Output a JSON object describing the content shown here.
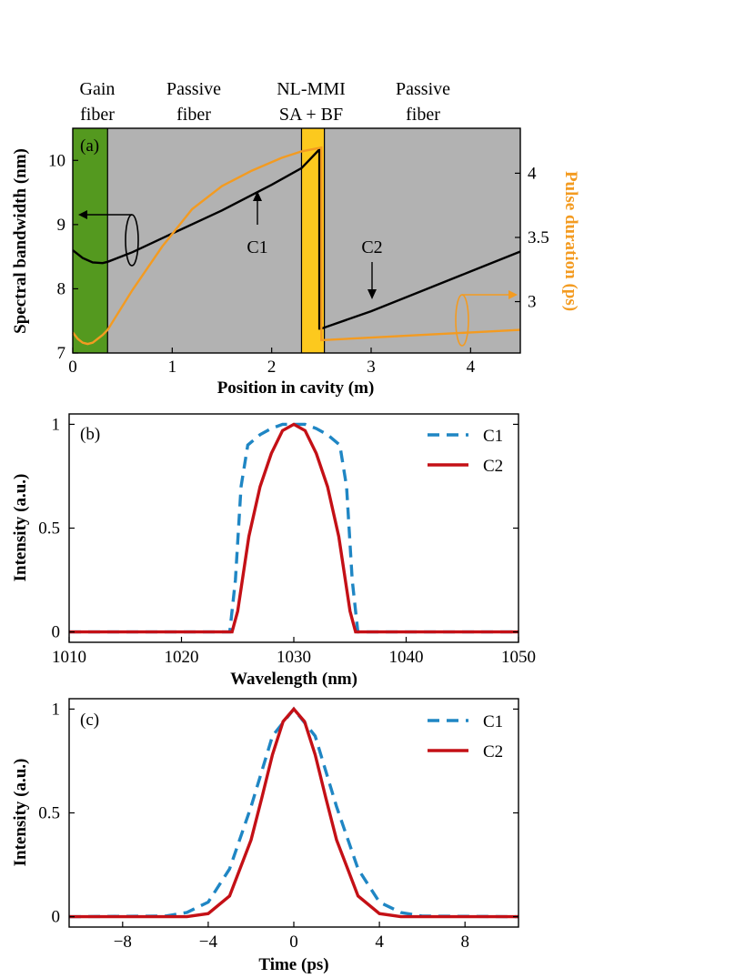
{
  "colors": {
    "gain_fiber": "#54991f",
    "passive_fiber": "#b2b2b2",
    "mmi": "#fcc91e",
    "bandwidth_curve": "#000000",
    "pulse_duration_curve": "#f39b21",
    "c1": "#1f86c4",
    "c2": "#c41016"
  },
  "chart_data": [
    {
      "panel": "(a)",
      "type": "line",
      "section_labels": [
        {
          "line1": "Gain",
          "line2": "fiber"
        },
        {
          "line1": "Passive",
          "line2": "fiber"
        },
        {
          "line1": "NL-MMI",
          "line2": "SA + BF"
        },
        {
          "line1": "Passive",
          "line2": "fiber"
        }
      ],
      "regions": [
        {
          "name": "Gain fiber",
          "x": [
            0,
            0.35
          ]
        },
        {
          "name": "Passive fiber",
          "x": [
            0.35,
            2.3
          ]
        },
        {
          "name": "NL-MMI SA + BF",
          "x": [
            2.3,
            2.53
          ]
        },
        {
          "name": "Passive fiber",
          "x": [
            2.53,
            4.5
          ]
        }
      ],
      "xlabel": "Position in cavity (m)",
      "ylabel": "Spectral bandwidth (nm)",
      "y2label": "Pulse duration (ps)",
      "xlim": [
        0,
        4.5
      ],
      "ylim": [
        7,
        10.5
      ],
      "y2lim": [
        2.6,
        4.35
      ],
      "xticks": [
        "0",
        "1",
        "2",
        "3",
        "4"
      ],
      "yticks": [
        "7",
        "8",
        "9",
        "10"
      ],
      "y2ticks": [
        "3",
        "3.5",
        "4"
      ],
      "annotations": [
        "C1",
        "C2"
      ],
      "series": [
        {
          "axis": "left",
          "x": [
            0,
            0.1,
            0.2,
            0.3,
            0.35,
            0.6,
            1.0,
            1.5,
            2.0,
            2.3,
            2.48,
            2.48,
            2.5,
            3.0,
            3.5,
            4.0,
            4.5
          ],
          "y": [
            8.6,
            8.48,
            8.41,
            8.4,
            8.42,
            8.57,
            8.86,
            9.22,
            9.62,
            9.88,
            10.17,
            7.38,
            7.38,
            7.65,
            7.96,
            8.27,
            8.58
          ]
        },
        {
          "axis": "right",
          "x": [
            0,
            0.05,
            0.1,
            0.15,
            0.2,
            0.3,
            0.35,
            0.6,
            0.9,
            1.2,
            1.5,
            1.8,
            2.1,
            2.3,
            2.5,
            2.5,
            3.0,
            3.5,
            4.0,
            4.5
          ],
          "y": [
            2.76,
            2.71,
            2.68,
            2.67,
            2.68,
            2.74,
            2.78,
            3.09,
            3.43,
            3.72,
            3.9,
            4.02,
            4.12,
            4.17,
            4.2,
            2.7,
            2.72,
            2.74,
            2.76,
            2.78
          ]
        }
      ]
    },
    {
      "panel": "(b)",
      "type": "line",
      "xlabel": "Wavelength (nm)",
      "ylabel": "Intensity (a.u.)",
      "xlim": [
        1010,
        1050
      ],
      "ylim": [
        -0.05,
        1.05
      ],
      "xticks": [
        "1010",
        "1020",
        "1030",
        "1040",
        "1050"
      ],
      "yticks": [
        "0",
        "0.5",
        "1"
      ],
      "legend": "top-right",
      "series": [
        {
          "name": "C1",
          "x": [
            1010,
            1024.3,
            1024.8,
            1025.3,
            1025.9,
            1027,
            1028,
            1029,
            1030,
            1031,
            1032,
            1033,
            1034.1,
            1034.7,
            1035.2,
            1035.7,
            1050
          ],
          "y": [
            0,
            0,
            0.25,
            0.7,
            0.9,
            0.95,
            0.98,
            1.0,
            1.0,
            1.0,
            0.98,
            0.95,
            0.9,
            0.7,
            0.25,
            0,
            0
          ]
        },
        {
          "name": "C2",
          "x": [
            1010,
            1024.5,
            1025,
            1026,
            1027,
            1028,
            1029,
            1030,
            1031,
            1032,
            1033,
            1034,
            1035,
            1035.5,
            1050
          ],
          "y": [
            0,
            0,
            0.1,
            0.46,
            0.7,
            0.86,
            0.97,
            1.0,
            0.97,
            0.86,
            0.7,
            0.46,
            0.1,
            0,
            0
          ]
        }
      ]
    },
    {
      "panel": "(c)",
      "type": "line",
      "xlabel": "Time (ps)",
      "ylabel": "Intensity (a.u.)",
      "xlim": [
        -10.5,
        10.5
      ],
      "ylim": [
        -0.05,
        1.05
      ],
      "xticks": [
        "−8",
        "−4",
        "0",
        "4",
        "8"
      ],
      "yticks": [
        "0",
        "0.5",
        "1"
      ],
      "legend": "top-right",
      "series": [
        {
          "name": "C1",
          "x": [
            -10.5,
            -6,
            -5,
            -4,
            -3,
            -2,
            -1,
            0,
            1,
            2,
            3,
            4,
            5,
            6,
            10.5
          ],
          "y": [
            0,
            0.003,
            0.02,
            0.07,
            0.23,
            0.53,
            0.87,
            1.0,
            0.87,
            0.53,
            0.23,
            0.07,
            0.02,
            0.003,
            0
          ]
        },
        {
          "name": "C2",
          "x": [
            -10.5,
            -5,
            -4,
            -3,
            -2,
            -1.5,
            -1,
            -0.5,
            0,
            0.5,
            1,
            1.5,
            2,
            3,
            4,
            5,
            10.5
          ],
          "y": [
            0,
            0,
            0.015,
            0.1,
            0.37,
            0.57,
            0.78,
            0.94,
            1.0,
            0.94,
            0.78,
            0.57,
            0.37,
            0.1,
            0.015,
            0,
            0
          ]
        }
      ]
    }
  ]
}
